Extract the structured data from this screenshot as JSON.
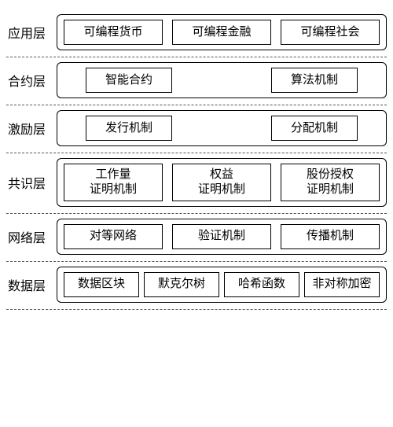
{
  "diagram": {
    "type": "layered-architecture",
    "background_color": "#ffffff",
    "border_color": "#000000",
    "divider_style": "dashed",
    "divider_color": "#555555",
    "label_fontsize": 16,
    "item_fontsize": 15,
    "outer_box_radius": 6,
    "layers": [
      {
        "label": "应用层",
        "layout": "space-between",
        "items": [
          "可编程货币",
          "可编程金融",
          "可编程社会"
        ]
      },
      {
        "label": "合约层",
        "layout": "two-wide-gap",
        "items": [
          "智能合约",
          "算法机制"
        ]
      },
      {
        "label": "激励层",
        "layout": "two-wide-gap",
        "items": [
          "发行机制",
          "分配机制"
        ]
      },
      {
        "label": "共识层",
        "layout": "space-between-multiline",
        "items": [
          "工作量\n证明机制",
          "权益\n证明机制",
          "股份授权\n证明机制"
        ]
      },
      {
        "label": "网络层",
        "layout": "space-between",
        "items": [
          "对等网络",
          "验证机制",
          "传播机制"
        ]
      },
      {
        "label": "数据层",
        "layout": "tight-four",
        "items": [
          "数据区块",
          "默克尔树",
          "哈希函数",
          "非对称加密"
        ]
      }
    ]
  }
}
